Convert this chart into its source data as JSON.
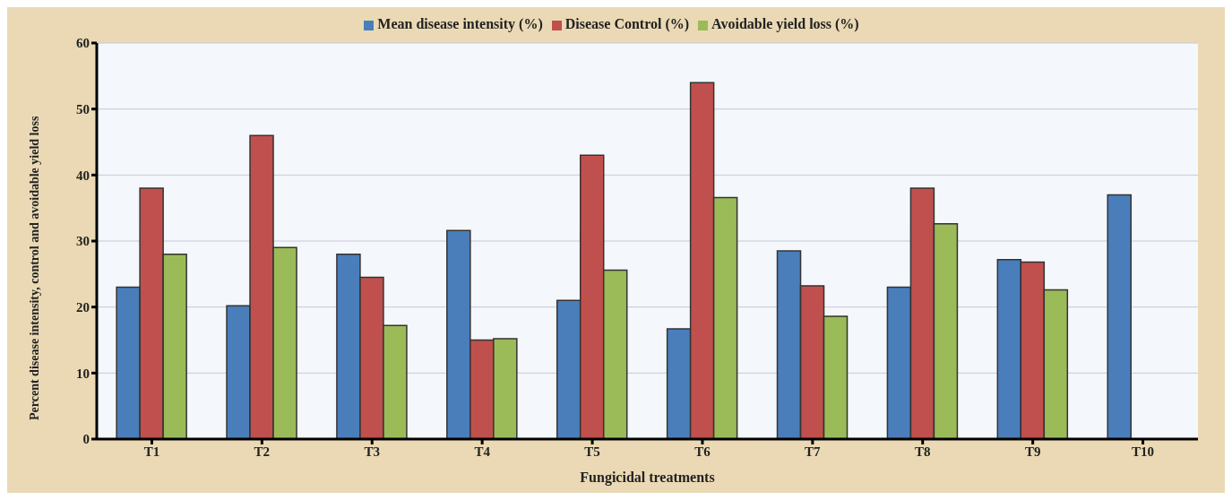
{
  "chart_data": {
    "type": "bar",
    "xlabel": "Fungicidal treatments",
    "ylabel": "Percent disease intensity, control and avoidable yield loss",
    "categories": [
      "T1",
      "T2",
      "T3",
      "T4",
      "T5",
      "T6",
      "T7",
      "T8",
      "T9",
      "T10"
    ],
    "series": [
      {
        "name": "Mean disease intensity (%)",
        "color": "#4a7ebb",
        "values": [
          23,
          20.2,
          28,
          31.6,
          21,
          16.7,
          28.5,
          23,
          27.2,
          37
        ]
      },
      {
        "name": "Disease Control (%)",
        "color": "#c0504d",
        "values": [
          38,
          46,
          24.5,
          15,
          43,
          54,
          23.2,
          38,
          26.8,
          null
        ]
      },
      {
        "name": "Avoidable yield loss (%)",
        "color": "#9bbb59",
        "values": [
          28,
          29,
          17.2,
          15.2,
          25.6,
          36.6,
          18.6,
          32.6,
          22.6,
          null
        ]
      }
    ],
    "ylim": [
      0,
      60
    ],
    "yticks": [
      0,
      10,
      20,
      30,
      40,
      50,
      60
    ],
    "grid": "y",
    "legend": "top"
  }
}
